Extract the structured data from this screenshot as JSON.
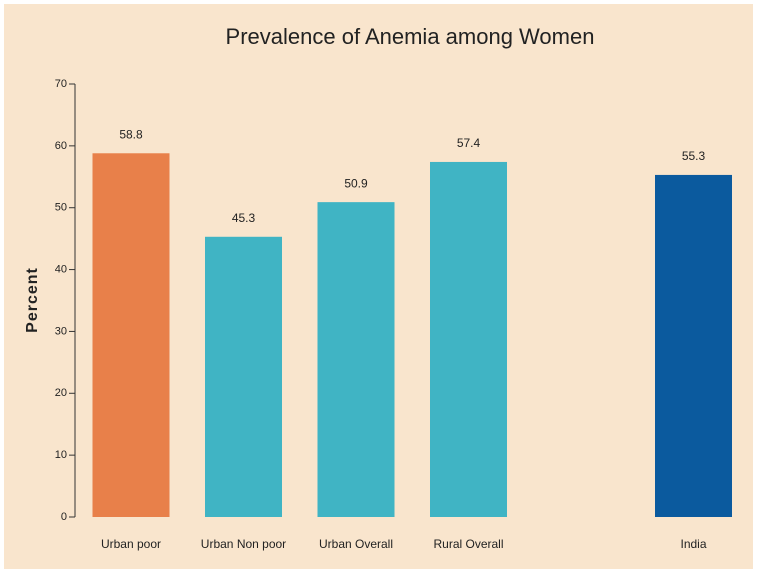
{
  "chart_data": {
    "type": "bar",
    "title": "Prevalence of Anemia among Women",
    "y_label": "Percent",
    "categories": [
      "Urban poor",
      "Urban Non poor",
      "Urban Overall",
      "Rural Overall",
      null,
      "India"
    ],
    "values": [
      58.8,
      45.3,
      50.9,
      57.4,
      null,
      55.3
    ],
    "colors": [
      "#e8804a",
      "#40b4c4",
      "#40b4c4",
      "#40b4c4",
      null,
      "#0b5a9e"
    ],
    "ylim": [
      0,
      70
    ],
    "yticks": [
      0,
      10,
      20,
      30,
      40,
      50,
      60,
      70
    ],
    "grid": false
  }
}
